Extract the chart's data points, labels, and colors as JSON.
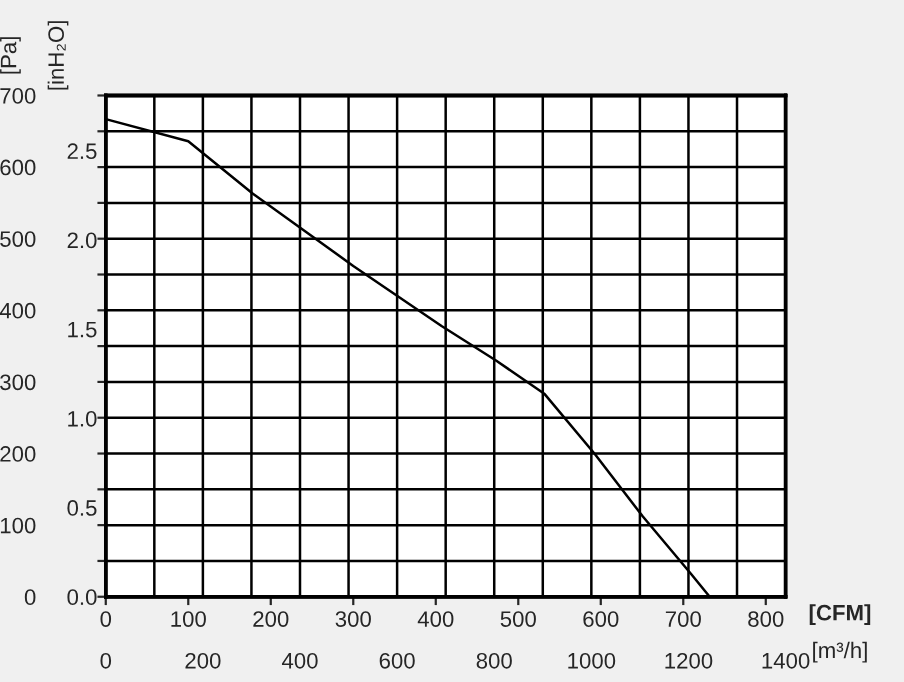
{
  "chart_data": {
    "type": "line",
    "x": [
      0,
      100,
      178,
      300,
      407,
      473,
      532,
      593,
      651,
      710,
      732
    ],
    "series": [
      {
        "color": "#000000",
        "values": [
          667,
          636,
          563,
          462,
          378,
          330,
          283,
          199,
          112,
          31,
          0
        ]
      }
    ],
    "xlim": [
      0,
      824
    ],
    "xticks": [
      0,
      100,
      200,
      300,
      400,
      500,
      600,
      700,
      800
    ],
    "ylim": [
      0,
      700
    ],
    "yticks": [
      0,
      {
        "value": 50,
        "label": null
      },
      100,
      {
        "value": 150,
        "label": null
      },
      200,
      {
        "value": 250,
        "label": null
      },
      300,
      {
        "value": 350,
        "label": null
      },
      400,
      {
        "value": 450,
        "label": null
      },
      500,
      {
        "value": 550,
        "label": null
      },
      600,
      {
        "value": 650,
        "label": null
      },
      700
    ],
    "y2lim": [
      0,
      2.81
    ],
    "y2ticks": [
      {
        "value": 0,
        "label": "0.0"
      },
      0.5,
      {
        "value": 1,
        "label": "1.0"
      },
      1.5,
      {
        "value": 2,
        "label": "2.0"
      },
      2.5
    ],
    "x2lim": [
      0,
      1400
    ],
    "x2ticks": [
      0,
      {
        "value": 100,
        "label": null
      },
      200,
      {
        "value": 300,
        "label": null
      },
      400,
      {
        "value": 500,
        "label": null
      },
      600,
      {
        "value": 700,
        "label": null
      },
      800,
      {
        "value": 900,
        "label": null
      },
      1000,
      {
        "value": 1100,
        "label": null
      },
      1200,
      {
        "value": 1300,
        "label": null
      },
      1400
    ],
    "xlabel": "[CFM]",
    "x2label": "[m³/h]",
    "ylabel": "[Pa]",
    "y2label": "[inH₂O]",
    "grid": true,
    "legend": false,
    "marker": "none",
    "line_style": "solid"
  }
}
